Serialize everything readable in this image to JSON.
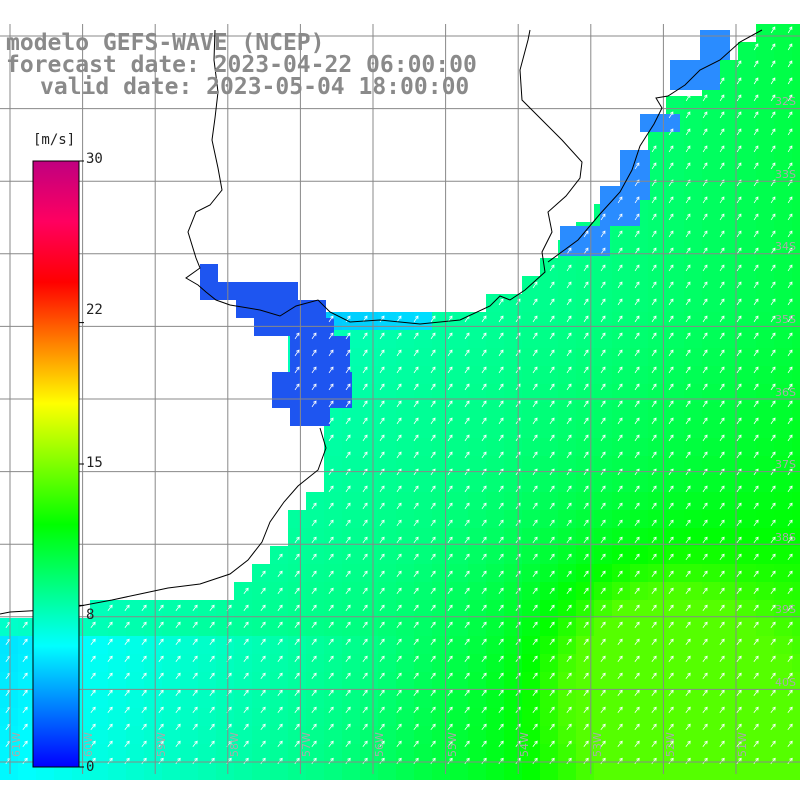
{
  "title": {
    "line1": "modelo GEFS-WAVE (NCEP)",
    "line2": "forecast date: 2023-04-22 06:00:00",
    "line3": "valid date: 2023-05-04 18:00:00"
  },
  "colorbar": {
    "unit": "[m/s]",
    "ticks": [
      "30",
      "22",
      "15",
      "8",
      "0"
    ],
    "tick_values": [
      30,
      22,
      15,
      8,
      0
    ],
    "min": 0,
    "max": 30,
    "colors": [
      "#0000ff",
      "#0080ff",
      "#00ffff",
      "#00ff80",
      "#00ff00",
      "#80ff00",
      "#ffff00",
      "#ff8000",
      "#ff0000",
      "#ff0060",
      "#c00080"
    ]
  },
  "lat_labels": [
    "32S",
    "33S",
    "34S",
    "35S",
    "36S",
    "37S",
    "38S",
    "39S",
    "40S"
  ],
  "lon_labels": [
    "61W",
    "60W",
    "59W",
    "58W",
    "57W",
    "56W",
    "55W",
    "54W",
    "53W",
    "52W",
    "51W"
  ],
  "map": {
    "land_color": "#ffffff",
    "grid_color": "#888888",
    "arrow_color": "#ffffff"
  }
}
